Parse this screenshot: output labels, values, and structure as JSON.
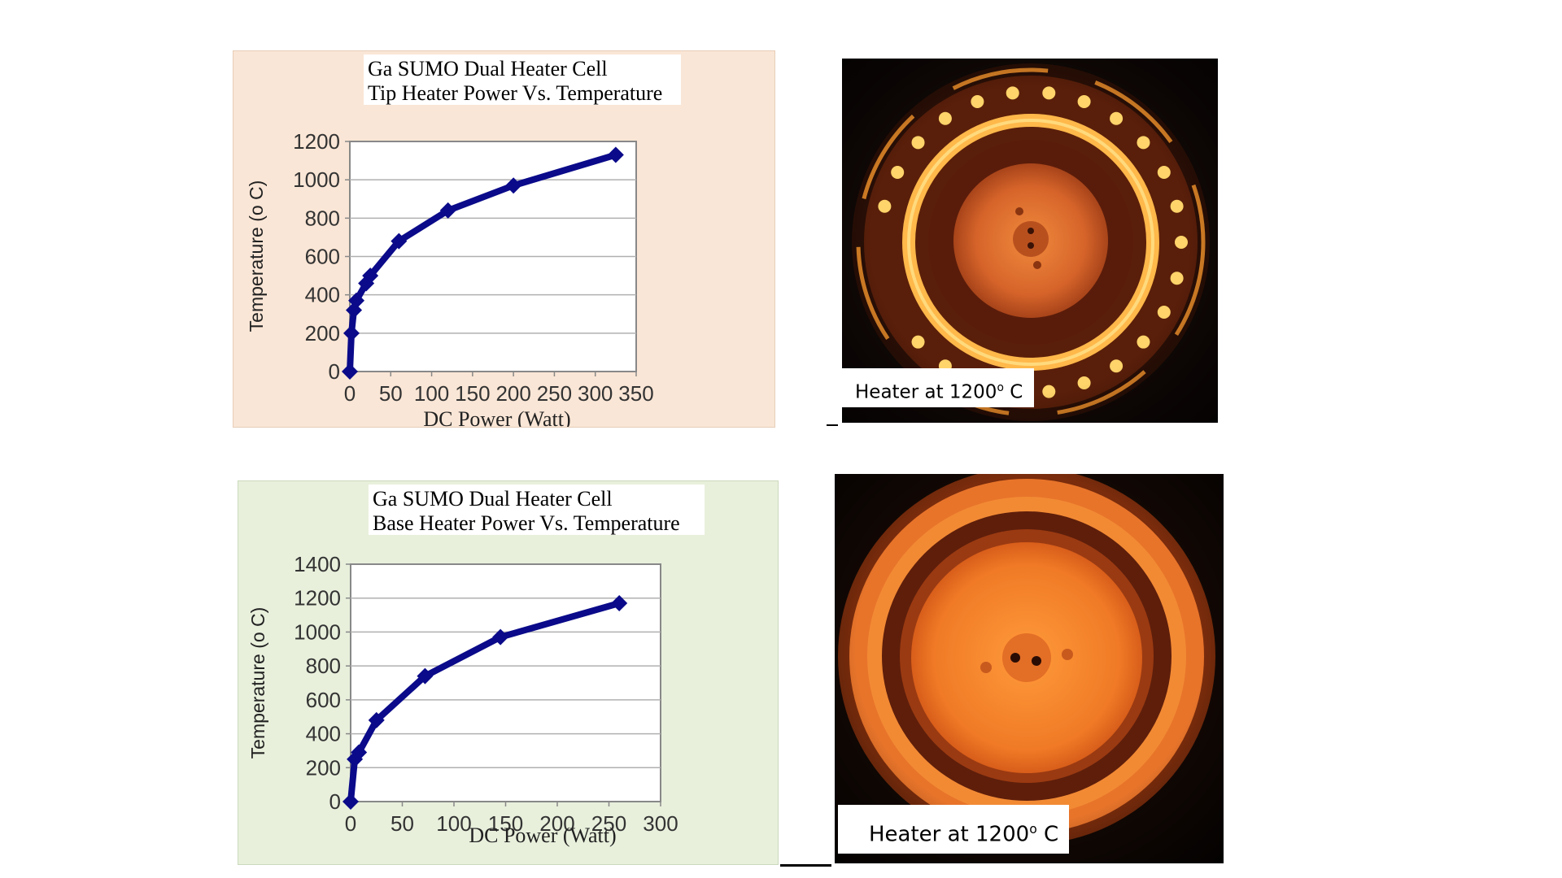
{
  "chart_data": [
    {
      "type": "line",
      "title": [
        "Ga SUMO Dual Heater Cell",
        "Tip Heater Power Vs. Temperature"
      ],
      "xlabel": "DC Power (Watt)",
      "ylabel": "Temperature (o C)",
      "xlim": [
        0,
        350
      ],
      "ylim": [
        0,
        1200
      ],
      "xticks": [
        0,
        50,
        100,
        150,
        200,
        250,
        300,
        350
      ],
      "yticks": [
        0,
        200,
        400,
        600,
        800,
        1000,
        1200
      ],
      "grid": "horizontal",
      "legend": "none",
      "series": [
        {
          "x": [
            0,
            2,
            5,
            8,
            20,
            25,
            60,
            120,
            200,
            325
          ],
          "y": [
            0,
            200,
            320,
            370,
            460,
            500,
            680,
            840,
            970,
            1130
          ]
        }
      ],
      "colors": {
        "panel_bg": "#fae6d6",
        "line": "#0a0a8a"
      }
    },
    {
      "type": "line",
      "title": [
        "Ga SUMO Dual Heater Cell",
        "Base Heater Power Vs. Temperature"
      ],
      "xlabel": "DC Power (Watt)",
      "ylabel": "Temperature (o C)",
      "xlim": [
        0,
        300
      ],
      "ylim": [
        0,
        1400
      ],
      "xticks": [
        0,
        50,
        100,
        150,
        200,
        250,
        300
      ],
      "yticks": [
        0,
        200,
        400,
        600,
        800,
        1000,
        1200,
        1400
      ],
      "grid": "horizontal",
      "legend": "none",
      "series": [
        {
          "x": [
            0,
            4,
            8,
            25,
            72,
            145,
            260
          ],
          "y": [
            0,
            250,
            290,
            480,
            740,
            970,
            1170
          ]
        }
      ],
      "colors": {
        "panel_bg": "#e8f0dc",
        "line": "#0a0a8a"
      }
    }
  ],
  "photos": [
    {
      "caption": {
        "prefix": "Heater at 1200",
        "degree": "o",
        "suffix": " C"
      }
    },
    {
      "caption": {
        "prefix": "Heater at 1200",
        "degree": "o",
        "suffix": " C"
      }
    }
  ]
}
